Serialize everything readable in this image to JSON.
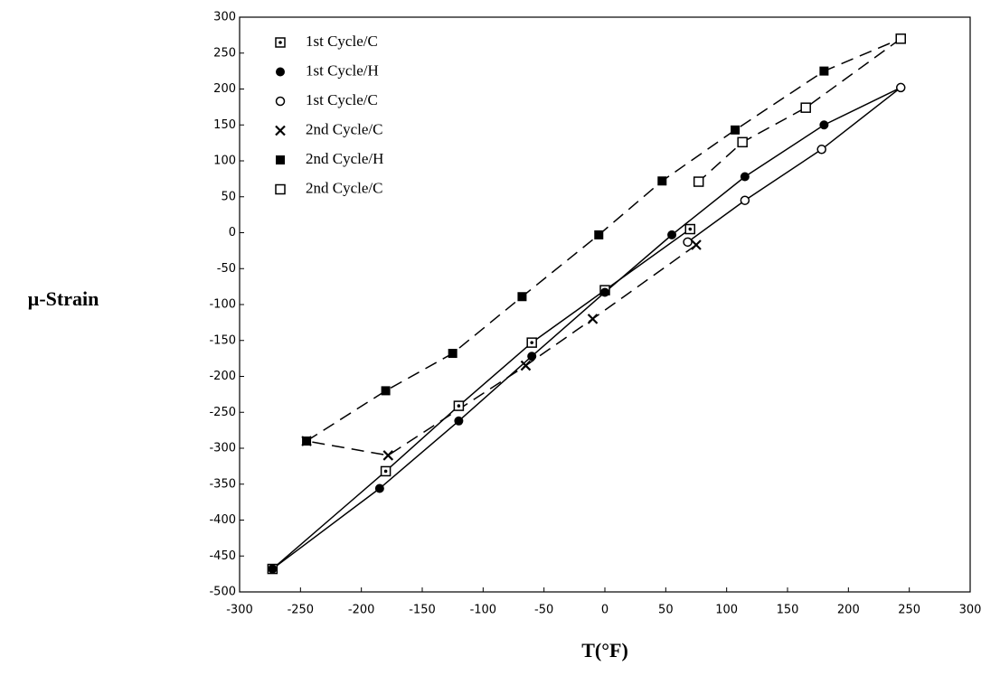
{
  "chart_data": {
    "type": "scatter",
    "x_label": "T(°F)",
    "y_label": "µ-Strain",
    "xlim": [
      -300,
      300
    ],
    "xticks": [
      -300,
      -250,
      -200,
      -150,
      -100,
      -50,
      0,
      50,
      100,
      150,
      200,
      250,
      300
    ],
    "ylim": [
      -500,
      300
    ],
    "yticks": [
      -500,
      -450,
      -400,
      -350,
      -300,
      -250,
      -200,
      -150,
      -100,
      -50,
      0,
      50,
      100,
      150,
      200,
      250,
      300
    ],
    "legend": "upper-left",
    "series": [
      {
        "name": "1st Cycle/C",
        "color": "#000000",
        "marker": "dotted-square",
        "line": "solid",
        "x": [
          -273,
          -180,
          -120,
          -60,
          0,
          70
        ],
        "values": [
          -468,
          -332,
          -241,
          -153,
          -80,
          5
        ]
      },
      {
        "name": "1st Cycle/H",
        "color": "#000000",
        "marker": "filled-circle",
        "line": "solid",
        "x": [
          -273,
          -185,
          -120,
          -60,
          0,
          55,
          115,
          180,
          243
        ],
        "values": [
          -468,
          -356,
          -262,
          -172,
          -83,
          -3,
          78,
          150,
          202
        ]
      },
      {
        "name": "1st Cycle/C",
        "color": "#000000",
        "marker": "open-circle",
        "line": "solid",
        "x": [
          243,
          178,
          115,
          68
        ],
        "values": [
          202,
          116,
          45,
          -13
        ]
      },
      {
        "name": "2nd Cycle/C",
        "color": "#000000",
        "marker": "cross",
        "line": "dashed",
        "x": [
          75,
          -10,
          -65,
          -178,
          -245
        ],
        "values": [
          -17,
          -120,
          -185,
          -310,
          -290
        ]
      },
      {
        "name": "2nd Cycle/H",
        "color": "#000000",
        "marker": "filled-square",
        "line": "dashed",
        "x": [
          -245,
          -180,
          -125,
          -68,
          -5,
          47,
          107,
          180,
          243
        ],
        "values": [
          -290,
          -220,
          -168,
          -89,
          -3,
          72,
          143,
          225,
          270
        ]
      },
      {
        "name": "2nd Cycle/C",
        "color": "#000000",
        "marker": "open-square",
        "line": "dashed",
        "x": [
          243,
          165,
          113,
          77
        ],
        "values": [
          270,
          174,
          126,
          71
        ]
      }
    ]
  }
}
